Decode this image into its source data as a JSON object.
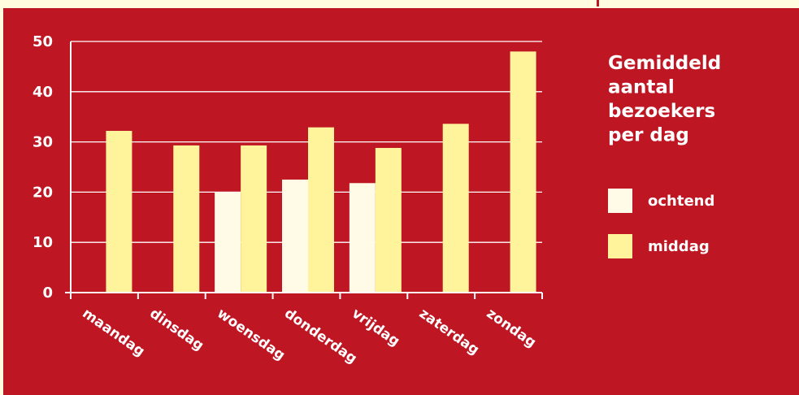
{
  "chart_data": {
    "type": "bar",
    "title_lines": [
      "Gemiddeld",
      "aantal",
      "bezoekers",
      "per dag"
    ],
    "categories": [
      "maandag",
      "dinsdag",
      "woensdag",
      "donderdag",
      "vrijdag",
      "zaterdag",
      "zondag"
    ],
    "series": [
      {
        "name": "ochtend",
        "color": "#fffbe6",
        "values": [
          null,
          null,
          20,
          22.5,
          21.8,
          null,
          null
        ]
      },
      {
        "name": "middag",
        "color": "#fff39c",
        "values": [
          32.2,
          29.3,
          29.3,
          32.9,
          28.8,
          33.6,
          48
        ]
      }
    ],
    "yticks": [
      0,
      10,
      20,
      30,
      40,
      50
    ],
    "ylim": [
      0,
      50
    ],
    "grid": true,
    "legend_position": "right",
    "colors": {
      "background": "#be1622",
      "outer": "#fffce0",
      "axis": "#ffffff"
    }
  }
}
